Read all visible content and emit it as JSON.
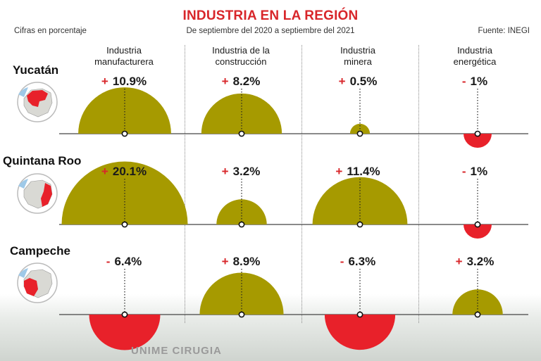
{
  "header": {
    "title": "INDUSTRIA EN LA REGIÓN",
    "subtitle_left": "Cifras en porcentaje",
    "subtitle_center": "De septiembre del 2020 a septiembre del 2021",
    "source": "Fuente: INEGI"
  },
  "colors": {
    "positive": "#a69a00",
    "negative": "#e8212a",
    "title": "#d8262a"
  },
  "photo_text": "UNIME CIRUGIA",
  "chart_data": {
    "type": "semicircle-bubble",
    "title": "INDUSTRIA EN LA REGIÓN",
    "unit": "%",
    "categories": [
      "Industria manufacturera",
      "Industria de la construcción",
      "Industria minera",
      "Industria energética"
    ],
    "category_lines": [
      [
        "Industria",
        "manufacturera"
      ],
      [
        "Industria de la",
        "construcción"
      ],
      [
        "Industria",
        "minera"
      ],
      [
        "Industria",
        "energética"
      ]
    ],
    "series": [
      {
        "name": "Yucatán",
        "values": [
          10.9,
          8.2,
          0.5,
          -1
        ],
        "labels": [
          {
            "sign": "+",
            "text": "10.9%"
          },
          {
            "sign": "+",
            "text": "8.2%"
          },
          {
            "sign": "+",
            "text": "0.5%"
          },
          {
            "sign": "-",
            "text": "1%"
          }
        ]
      },
      {
        "name": "Quintana Roo",
        "values": [
          20.1,
          3.2,
          11.4,
          -1
        ],
        "labels": [
          {
            "sign": "+",
            "text": "20.1%"
          },
          {
            "sign": "+",
            "text": "3.2%"
          },
          {
            "sign": "+",
            "text": "11.4%"
          },
          {
            "sign": "-",
            "text": "1%"
          }
        ]
      },
      {
        "name": "Campeche",
        "values": [
          -6.4,
          8.9,
          -6.3,
          3.2
        ],
        "labels": [
          {
            "sign": "-",
            "text": "6.4%"
          },
          {
            "sign": "+",
            "text": "8.9%"
          },
          {
            "sign": "-",
            "text": "6.3%"
          },
          {
            "sign": "+",
            "text": "3.2%"
          }
        ]
      }
    ]
  }
}
